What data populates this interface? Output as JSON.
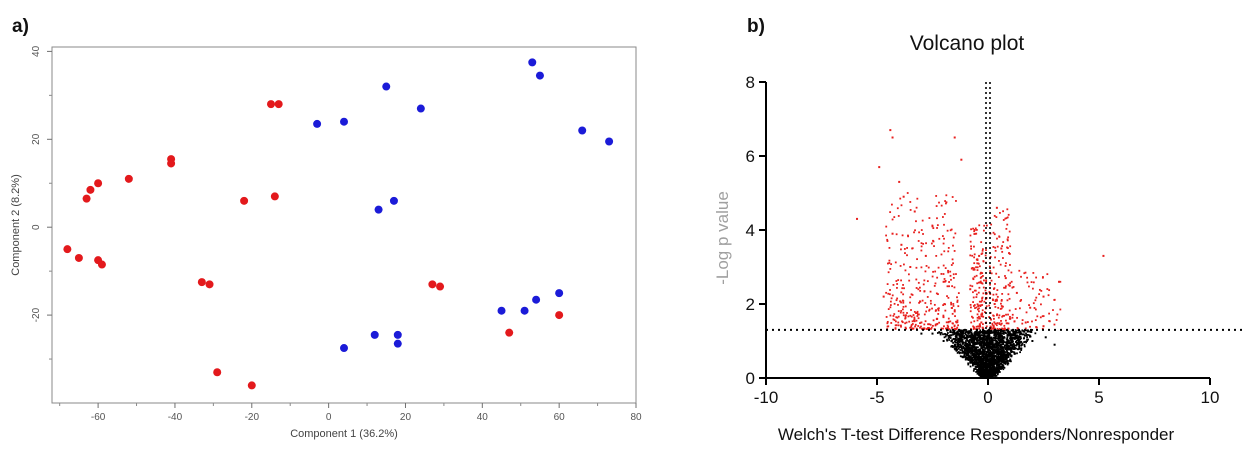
{
  "panels": {
    "a_label": "a)",
    "b_label": "b)"
  },
  "chart_data": [
    {
      "type": "scatter",
      "title": "",
      "xlabel": "Component 1 (36.2%)",
      "ylabel": "Component 2 (8.2%)",
      "xlim": [
        -72,
        80
      ],
      "ylim": [
        -40,
        41
      ],
      "xticks": [
        -60,
        -40,
        -20,
        0,
        20,
        40,
        60,
        80
      ],
      "xtick_labels": [
        "-60",
        "-40",
        "-20",
        "0",
        "20",
        "40",
        "60",
        "80"
      ],
      "yticks": [
        -20,
        0,
        20,
        40
      ],
      "ytick_labels": [
        "-20",
        "0",
        "20",
        "40"
      ],
      "grid": false,
      "colors": {
        "group1": "#e3191c",
        "group2": "#1b1bd8"
      },
      "series": [
        {
          "color": "#e3191c",
          "points": [
            [
              -68,
              -5
            ],
            [
              -65,
              -7
            ],
            [
              -60,
              -7.5
            ],
            [
              -59,
              -8.5
            ],
            [
              -63,
              6.5
            ],
            [
              -62,
              8.5
            ],
            [
              -60,
              10
            ],
            [
              -52,
              11
            ],
            [
              -41,
              15.5
            ],
            [
              -41,
              14.5
            ],
            [
              -22,
              6
            ],
            [
              -14,
              7
            ],
            [
              -15,
              28
            ],
            [
              -13,
              28
            ],
            [
              -33,
              -12.5
            ],
            [
              -31,
              -13
            ],
            [
              -29,
              -33
            ],
            [
              -20,
              -36
            ],
            [
              27,
              -13
            ],
            [
              29,
              -13.5
            ],
            [
              47,
              -24
            ],
            [
              60,
              -20
            ]
          ]
        },
        {
          "color": "#1b1bd8",
          "points": [
            [
              -3,
              23.5
            ],
            [
              4,
              24
            ],
            [
              15,
              32
            ],
            [
              24,
              27
            ],
            [
              13,
              4
            ],
            [
              17,
              6
            ],
            [
              53,
              37.5
            ],
            [
              55,
              34.5
            ],
            [
              66,
              22
            ],
            [
              73,
              19.5
            ],
            [
              4,
              -27.5
            ],
            [
              12,
              -24.5
            ],
            [
              18,
              -24.5
            ],
            [
              18,
              -26.5
            ],
            [
              45,
              -19
            ],
            [
              51,
              -19
            ],
            [
              54,
              -16.5
            ],
            [
              60,
              -15
            ]
          ]
        }
      ]
    },
    {
      "type": "scatter",
      "title": "Volcano plot",
      "xlabel": "Welch's T-test Difference Responders/Nonresponder",
      "ylabel": "-Log p value",
      "xlim": [
        -10,
        10
      ],
      "ylim": [
        0,
        8
      ],
      "xticks": [
        -10,
        -5,
        0,
        5,
        10
      ],
      "xtick_labels": [
        "-10",
        "-5",
        "0",
        "5",
        "10"
      ],
      "yticks": [
        0,
        2,
        4,
        6,
        8
      ],
      "ytick_labels": [
        "0",
        "2",
        "4",
        "6",
        "8"
      ],
      "grid": false,
      "thresholds": {
        "neg_log_p": 1.3,
        "x": 0
      },
      "colors": {
        "significant": "#e8201e",
        "not_significant": "#000000",
        "ylabel": "#a0a0a0"
      },
      "series": [
        {
          "color": "#e8201e",
          "points": [
            [
              -4.4,
              6.7
            ],
            [
              -4.3,
              6.5
            ],
            [
              -1.5,
              6.5
            ],
            [
              -4.9,
              5.7
            ],
            [
              -1.2,
              5.9
            ],
            [
              -4.0,
              5.3
            ],
            [
              -3.8,
              4.9
            ],
            [
              -5.9,
              4.3
            ],
            [
              5.2,
              3.3
            ],
            [
              -4.3,
              3.9
            ],
            [
              -3.3,
              4.5
            ],
            [
              -2.5,
              4.1
            ],
            [
              -3.9,
              3.6
            ],
            [
              -3.5,
              3.0
            ],
            [
              -2.8,
              3.3
            ],
            [
              -2.0,
              2.6
            ],
            [
              -4.7,
              2.2
            ],
            [
              -0.6,
              4.0
            ],
            [
              -0.4,
              3.3
            ],
            [
              0.4,
              4.6
            ],
            [
              0.6,
              3.5
            ],
            [
              0.8,
              2.7
            ],
            [
              1.3,
              2.3
            ],
            [
              1.9,
              1.9
            ],
            [
              2.5,
              2.2
            ],
            [
              3.2,
              2.6
            ],
            [
              -0.8,
              2.4
            ],
            [
              -1.5,
              1.8
            ],
            [
              -2.3,
              1.6
            ],
            [
              -3.0,
              1.5
            ],
            [
              0.3,
              2.0
            ],
            [
              1.0,
              1.6
            ],
            [
              1.7,
              1.5
            ],
            [
              2.5,
              1.4
            ],
            [
              -0.3,
              1.5
            ]
          ]
        },
        {
          "color": "#000000",
          "points": [
            [
              0,
              0.05
            ],
            [
              -0.5,
              0.3
            ],
            [
              0.5,
              0.3
            ],
            [
              -1.0,
              0.5
            ],
            [
              1.0,
              0.5
            ],
            [
              -1.5,
              0.8
            ],
            [
              1.5,
              0.8
            ],
            [
              -2.0,
              1.0
            ],
            [
              2.0,
              1.0
            ],
            [
              -2.5,
              1.2
            ],
            [
              2.6,
              1.1
            ],
            [
              3.0,
              0.9
            ],
            [
              -3.0,
              1.2
            ],
            [
              0.2,
              1.0
            ],
            [
              -0.2,
              0.7
            ]
          ]
        }
      ]
    }
  ]
}
